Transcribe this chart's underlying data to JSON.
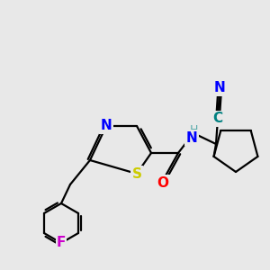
{
  "bg_color": "#e8e8e8",
  "atom_colors": {
    "N": "#0000ff",
    "S": "#cccc00",
    "O": "#ff0000",
    "F": "#cc00cc",
    "C_cyan": "#008080",
    "NH_color": "#5aacac",
    "default": "#000000"
  },
  "bond_color": "#000000",
  "bond_width": 1.6,
  "font_size_atom": 11
}
